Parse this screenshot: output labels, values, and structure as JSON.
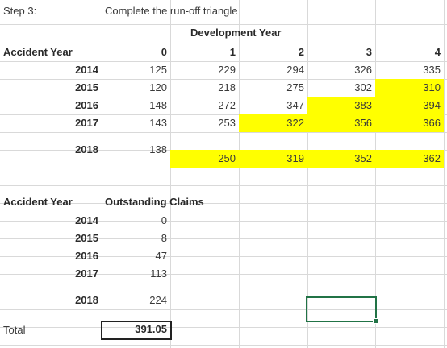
{
  "step_label": "Step 3:",
  "step_title": "Complete the run-off triangle",
  "dev_header": "Development Year",
  "ay_header": "Accident Year",
  "dev_years": [
    "0",
    "1",
    "2",
    "3",
    "4"
  ],
  "triangle": [
    {
      "year": "2014",
      "values": [
        "125",
        "229",
        "294",
        "326",
        "335"
      ]
    },
    {
      "year": "2015",
      "values": [
        "120",
        "218",
        "275",
        "302",
        "310"
      ]
    },
    {
      "year": "2016",
      "values": [
        "148",
        "272",
        "347",
        "383",
        "394"
      ]
    },
    {
      "year": "2017",
      "values": [
        "143",
        "253",
        "322",
        "356",
        "366"
      ]
    },
    {
      "year": "2018",
      "values": [
        "138",
        "250",
        "319",
        "352",
        "362"
      ]
    }
  ],
  "highlight_color": "#ffff00",
  "selection_color": "#217346",
  "outstanding": {
    "ay_header": "Accident Year",
    "oc_header": "Outstanding Claims",
    "rows": [
      {
        "year": "2014",
        "value": "0"
      },
      {
        "year": "2015",
        "value": "8"
      },
      {
        "year": "2016",
        "value": "47"
      },
      {
        "year": "2017",
        "value": "113"
      },
      {
        "year": "2018",
        "value": "224"
      }
    ],
    "total_label": "Total",
    "total_value": "391.05"
  }
}
